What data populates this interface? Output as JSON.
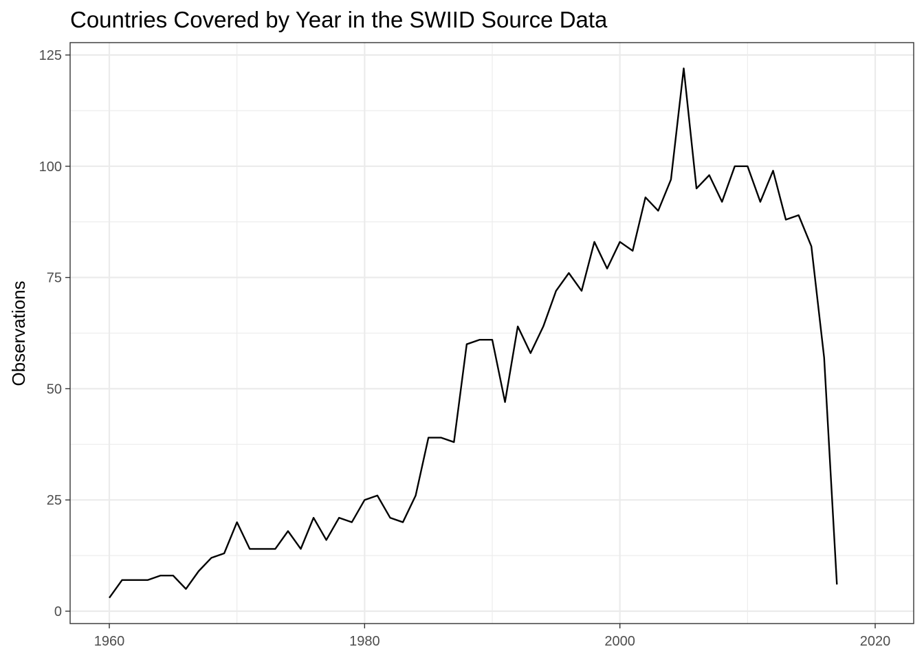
{
  "chart_data": {
    "type": "line",
    "title": "Countries Covered by Year in the SWIID Source Data",
    "xlabel": "",
    "ylabel": "Observations",
    "xlim": [
      1960,
      2020
    ],
    "ylim": [
      0,
      125
    ],
    "x_ticks": [
      "1960",
      "1980",
      "2000",
      "2020"
    ],
    "y_ticks": [
      "0",
      "25",
      "50",
      "75",
      "100",
      "125"
    ],
    "grid": true,
    "legend": "none",
    "line_color": "#000000",
    "series": [
      {
        "x": [
          1960,
          1961,
          1962,
          1963,
          1964,
          1965,
          1966,
          1967,
          1968,
          1969,
          1970,
          1971,
          1972,
          1973,
          1974,
          1975,
          1976,
          1977,
          1978,
          1979,
          1980,
          1981,
          1982,
          1983,
          1984,
          1985,
          1986,
          1987,
          1988,
          1989,
          1990,
          1991,
          1992,
          1993,
          1994,
          1995,
          1996,
          1997,
          1998,
          1999,
          2000,
          2001,
          2002,
          2003,
          2004,
          2005,
          2006,
          2007,
          2008,
          2009,
          2010,
          2011,
          2012,
          2013,
          2014,
          2015,
          2016,
          2017
        ],
        "values": [
          3,
          7,
          7,
          7,
          8,
          8,
          5,
          9,
          12,
          13,
          20,
          14,
          14,
          14,
          18,
          14,
          21,
          16,
          21,
          20,
          25,
          26,
          21,
          20,
          26,
          39,
          39,
          38,
          60,
          61,
          61,
          47,
          64,
          58,
          64,
          72,
          76,
          72,
          83,
          77,
          83,
          81,
          93,
          90,
          97,
          122,
          95,
          98,
          92,
          100,
          100,
          92,
          99,
          88,
          89,
          82,
          57,
          6
        ]
      }
    ]
  }
}
